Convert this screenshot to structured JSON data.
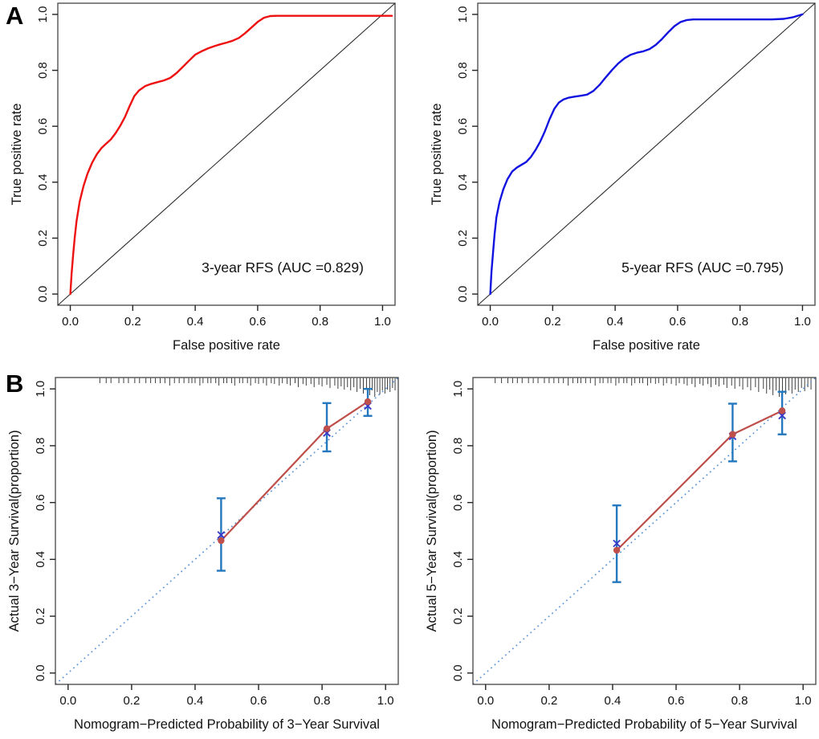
{
  "figure": {
    "panel_a_letter": "A",
    "panel_b_letter": "B",
    "background": "#ffffff"
  },
  "colors": {
    "roc_3yr": "#ee1111",
    "roc_5yr": "#1212e0",
    "reference_line": "#2b2b2b",
    "frame": "#444444",
    "tick": "#222222",
    "text": "#111111",
    "calibration_line": "#bf4f4a",
    "calibration_point": "#bf4f4a",
    "error_bar": "#2478be",
    "cross_marker": "#3a3ac8",
    "ideal_line": "#5b93d8",
    "rug": "#3f3f3f"
  },
  "chart_data": [
    {
      "id": "roc3",
      "type": "line",
      "subtype": "roc",
      "xlabel": "False positive rate",
      "ylabel": "True positive rate",
      "xlim": [
        0,
        1
      ],
      "ylim": [
        0,
        1
      ],
      "xticks": [
        "0.0",
        "0.2",
        "0.4",
        "0.6",
        "0.8",
        "1.0"
      ],
      "yticks": [
        "0.0",
        "0.2",
        "0.4",
        "0.6",
        "0.8",
        "1.0"
      ],
      "grid": false,
      "diagonal_reference": true,
      "annotation": "3-year RFS (AUC =0.829)",
      "annotation_xy": [
        0.68,
        0.095
      ],
      "auc": 0.829,
      "color_key": "roc_3yr",
      "curve": [
        [
          0,
          0
        ],
        [
          0.004,
          0.07
        ],
        [
          0.009,
          0.14
        ],
        [
          0.014,
          0.2
        ],
        [
          0.02,
          0.26
        ],
        [
          0.03,
          0.33
        ],
        [
          0.042,
          0.385
        ],
        [
          0.055,
          0.43
        ],
        [
          0.07,
          0.47
        ],
        [
          0.085,
          0.5
        ],
        [
          0.1,
          0.522
        ],
        [
          0.115,
          0.538
        ],
        [
          0.13,
          0.553
        ],
        [
          0.145,
          0.575
        ],
        [
          0.16,
          0.602
        ],
        [
          0.175,
          0.633
        ],
        [
          0.19,
          0.672
        ],
        [
          0.205,
          0.708
        ],
        [
          0.22,
          0.728
        ],
        [
          0.24,
          0.744
        ],
        [
          0.26,
          0.752
        ],
        [
          0.28,
          0.758
        ],
        [
          0.3,
          0.764
        ],
        [
          0.32,
          0.773
        ],
        [
          0.34,
          0.79
        ],
        [
          0.36,
          0.812
        ],
        [
          0.38,
          0.834
        ],
        [
          0.4,
          0.856
        ],
        [
          0.42,
          0.868
        ],
        [
          0.44,
          0.878
        ],
        [
          0.46,
          0.886
        ],
        [
          0.48,
          0.893
        ],
        [
          0.5,
          0.899
        ],
        [
          0.52,
          0.906
        ],
        [
          0.54,
          0.916
        ],
        [
          0.56,
          0.933
        ],
        [
          0.58,
          0.953
        ],
        [
          0.6,
          0.973
        ],
        [
          0.62,
          0.988
        ],
        [
          0.64,
          0.994
        ],
        [
          0.66,
          0.995
        ],
        [
          1.03,
          0.995
        ]
      ]
    },
    {
      "id": "roc5",
      "type": "line",
      "subtype": "roc",
      "xlabel": "False positive rate",
      "ylabel": "True positive rate",
      "xlim": [
        0,
        1
      ],
      "ylim": [
        0,
        1
      ],
      "xticks": [
        "0.0",
        "0.2",
        "0.4",
        "0.6",
        "0.8",
        "1.0"
      ],
      "yticks": [
        "0.0",
        "0.2",
        "0.4",
        "0.6",
        "0.8",
        "1.0"
      ],
      "grid": false,
      "diagonal_reference": true,
      "annotation": "5-year RFS (AUC =0.795)",
      "annotation_xy": [
        0.68,
        0.095
      ],
      "auc": 0.795,
      "color_key": "roc_5yr",
      "curve": [
        [
          0,
          0
        ],
        [
          0.004,
          0.08
        ],
        [
          0.009,
          0.15
        ],
        [
          0.014,
          0.215
        ],
        [
          0.02,
          0.275
        ],
        [
          0.03,
          0.33
        ],
        [
          0.042,
          0.375
        ],
        [
          0.055,
          0.41
        ],
        [
          0.07,
          0.438
        ],
        [
          0.085,
          0.452
        ],
        [
          0.1,
          0.462
        ],
        [
          0.115,
          0.472
        ],
        [
          0.13,
          0.49
        ],
        [
          0.145,
          0.515
        ],
        [
          0.16,
          0.545
        ],
        [
          0.175,
          0.582
        ],
        [
          0.19,
          0.625
        ],
        [
          0.205,
          0.662
        ],
        [
          0.22,
          0.685
        ],
        [
          0.235,
          0.696
        ],
        [
          0.25,
          0.702
        ],
        [
          0.27,
          0.706
        ],
        [
          0.29,
          0.709
        ],
        [
          0.31,
          0.713
        ],
        [
          0.33,
          0.726
        ],
        [
          0.35,
          0.748
        ],
        [
          0.37,
          0.775
        ],
        [
          0.39,
          0.801
        ],
        [
          0.41,
          0.825
        ],
        [
          0.43,
          0.843
        ],
        [
          0.45,
          0.856
        ],
        [
          0.47,
          0.863
        ],
        [
          0.49,
          0.868
        ],
        [
          0.51,
          0.876
        ],
        [
          0.53,
          0.891
        ],
        [
          0.55,
          0.912
        ],
        [
          0.57,
          0.936
        ],
        [
          0.59,
          0.958
        ],
        [
          0.61,
          0.973
        ],
        [
          0.63,
          0.98
        ],
        [
          0.65,
          0.982
        ],
        [
          0.9,
          0.982
        ],
        [
          0.94,
          0.984
        ],
        [
          0.97,
          0.99
        ],
        [
          1.0,
          1.0
        ]
      ]
    },
    {
      "id": "cal3",
      "type": "scatter",
      "subtype": "calibration",
      "xlabel": "Nomogram−Predicted Probability of 3−Year Survival",
      "ylabel": "Actual 3−Year Survival(proportion)",
      "xlim": [
        0,
        1
      ],
      "ylim": [
        0,
        1
      ],
      "xticks": [
        "0.0",
        "0.2",
        "0.4",
        "0.6",
        "0.8",
        "1.0"
      ],
      "yticks": [
        "0.0",
        "0.2",
        "0.4",
        "0.6",
        "0.8",
        "1.0"
      ],
      "grid": false,
      "ideal_line": true,
      "points": {
        "predicted_x": [
          0.482,
          0.815,
          0.944
        ],
        "observed_y": [
          0.466,
          0.86,
          0.955
        ],
        "bias_corrected_y": [
          0.486,
          0.845,
          0.94
        ],
        "ci_low": [
          0.36,
          0.78,
          0.905
        ],
        "ci_high": [
          0.615,
          0.95,
          1.0
        ]
      },
      "rug": [
        [
          0.1,
          7
        ],
        [
          0.12,
          7
        ],
        [
          0.135,
          7
        ],
        [
          0.16,
          7
        ],
        [
          0.175,
          7
        ],
        [
          0.19,
          7
        ],
        [
          0.21,
          7
        ],
        [
          0.225,
          7
        ],
        [
          0.245,
          7
        ],
        [
          0.26,
          7
        ],
        [
          0.275,
          7
        ],
        [
          0.29,
          7
        ],
        [
          0.305,
          7
        ],
        [
          0.32,
          10
        ],
        [
          0.335,
          7
        ],
        [
          0.35,
          7
        ],
        [
          0.365,
          7
        ],
        [
          0.38,
          7
        ],
        [
          0.39,
          7
        ],
        [
          0.4,
          7
        ],
        [
          0.415,
          10
        ],
        [
          0.425,
          7
        ],
        [
          0.44,
          7
        ],
        [
          0.45,
          7
        ],
        [
          0.465,
          7
        ],
        [
          0.475,
          10
        ],
        [
          0.49,
          7
        ],
        [
          0.5,
          7
        ],
        [
          0.515,
          7
        ],
        [
          0.525,
          10
        ],
        [
          0.54,
          7
        ],
        [
          0.55,
          7
        ],
        [
          0.565,
          7
        ],
        [
          0.575,
          10
        ],
        [
          0.59,
          7
        ],
        [
          0.6,
          8
        ],
        [
          0.615,
          7
        ],
        [
          0.625,
          10
        ],
        [
          0.64,
          7
        ],
        [
          0.65,
          8
        ],
        [
          0.665,
          10
        ],
        [
          0.675,
          7
        ],
        [
          0.69,
          8
        ],
        [
          0.7,
          10
        ],
        [
          0.715,
          7
        ],
        [
          0.725,
          12
        ],
        [
          0.74,
          8
        ],
        [
          0.75,
          10
        ],
        [
          0.765,
          8
        ],
        [
          0.775,
          12
        ],
        [
          0.79,
          9
        ],
        [
          0.8,
          11
        ],
        [
          0.815,
          9
        ],
        [
          0.825,
          13
        ],
        [
          0.84,
          10
        ],
        [
          0.85,
          14
        ],
        [
          0.86,
          11
        ],
        [
          0.87,
          15
        ],
        [
          0.88,
          12
        ],
        [
          0.89,
          16
        ],
        [
          0.9,
          12
        ],
        [
          0.91,
          18
        ],
        [
          0.92,
          14
        ],
        [
          0.93,
          20
        ],
        [
          0.94,
          15
        ],
        [
          0.95,
          22
        ],
        [
          0.958,
          16
        ],
        [
          0.966,
          24
        ],
        [
          0.974,
          18
        ],
        [
          0.982,
          21
        ],
        [
          0.99,
          16
        ],
        [
          0.998,
          20
        ],
        [
          1.006,
          15
        ],
        [
          1.014,
          18
        ],
        [
          1.022,
          13
        ],
        [
          1.03,
          16
        ]
      ]
    },
    {
      "id": "cal5",
      "type": "scatter",
      "subtype": "calibration",
      "xlabel": "Nomogram−Predicted Probability of 5−Year Survival",
      "ylabel": "Actual 5−Year Survival(proportion)",
      "xlim": [
        0,
        1
      ],
      "ylim": [
        0,
        1
      ],
      "xticks": [
        "0.0",
        "0.2",
        "0.4",
        "0.6",
        "0.8",
        "1.0"
      ],
      "yticks": [
        "0.0",
        "0.2",
        "0.4",
        "0.6",
        "0.8",
        "1.0"
      ],
      "grid": false,
      "ideal_line": true,
      "points": {
        "predicted_x": [
          0.413,
          0.778,
          0.934
        ],
        "observed_y": [
          0.432,
          0.84,
          0.923
        ],
        "bias_corrected_y": [
          0.456,
          0.833,
          0.906
        ],
        "ci_low": [
          0.32,
          0.745,
          0.84
        ],
        "ci_high": [
          0.59,
          0.948,
          0.99
        ]
      },
      "rug": [
        [
          0.03,
          7
        ],
        [
          0.05,
          7
        ],
        [
          0.07,
          7
        ],
        [
          0.085,
          7
        ],
        [
          0.1,
          7
        ],
        [
          0.115,
          7
        ],
        [
          0.135,
          7
        ],
        [
          0.15,
          7
        ],
        [
          0.165,
          7
        ],
        [
          0.185,
          7
        ],
        [
          0.2,
          7
        ],
        [
          0.215,
          7
        ],
        [
          0.23,
          7
        ],
        [
          0.245,
          7
        ],
        [
          0.26,
          10
        ],
        [
          0.275,
          7
        ],
        [
          0.29,
          7
        ],
        [
          0.3,
          7
        ],
        [
          0.315,
          7
        ],
        [
          0.33,
          7
        ],
        [
          0.345,
          10
        ],
        [
          0.36,
          7
        ],
        [
          0.37,
          7
        ],
        [
          0.385,
          7
        ],
        [
          0.395,
          7
        ],
        [
          0.41,
          10
        ],
        [
          0.42,
          7
        ],
        [
          0.435,
          7
        ],
        [
          0.445,
          7
        ],
        [
          0.46,
          10
        ],
        [
          0.47,
          7
        ],
        [
          0.485,
          7
        ],
        [
          0.495,
          7
        ],
        [
          0.51,
          10
        ],
        [
          0.52,
          7
        ],
        [
          0.535,
          8
        ],
        [
          0.545,
          7
        ],
        [
          0.56,
          10
        ],
        [
          0.57,
          7
        ],
        [
          0.585,
          8
        ],
        [
          0.6,
          10
        ],
        [
          0.61,
          7
        ],
        [
          0.625,
          8
        ],
        [
          0.635,
          10
        ],
        [
          0.65,
          8
        ],
        [
          0.66,
          12
        ],
        [
          0.675,
          8
        ],
        [
          0.685,
          10
        ],
        [
          0.7,
          8
        ],
        [
          0.71,
          12
        ],
        [
          0.725,
          9
        ],
        [
          0.735,
          11
        ],
        [
          0.75,
          9
        ],
        [
          0.76,
          13
        ],
        [
          0.775,
          10
        ],
        [
          0.785,
          14
        ],
        [
          0.8,
          11
        ],
        [
          0.81,
          15
        ],
        [
          0.825,
          12
        ],
        [
          0.835,
          16
        ],
        [
          0.85,
          12
        ],
        [
          0.86,
          18
        ],
        [
          0.875,
          14
        ],
        [
          0.885,
          20
        ],
        [
          0.895,
          15
        ],
        [
          0.905,
          22
        ],
        [
          0.915,
          16
        ],
        [
          0.925,
          24
        ],
        [
          0.935,
          18
        ],
        [
          0.945,
          21
        ],
        [
          0.955,
          16
        ],
        [
          0.965,
          20
        ],
        [
          0.975,
          15
        ],
        [
          0.985,
          18
        ],
        [
          0.995,
          13
        ],
        [
          1.005,
          17
        ],
        [
          1.015,
          12
        ],
        [
          1.025,
          15
        ]
      ]
    }
  ]
}
